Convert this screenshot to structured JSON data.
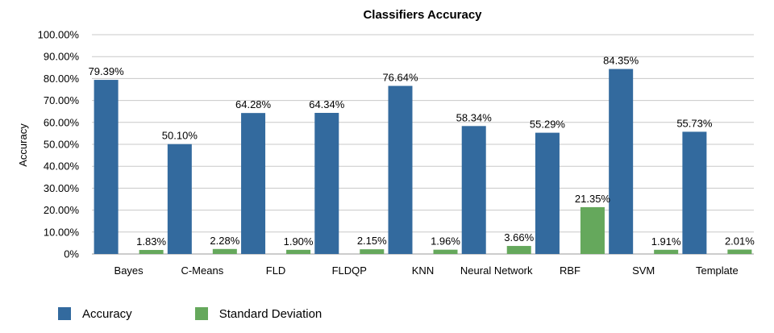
{
  "chart_data": {
    "type": "bar",
    "title": "Classifiers Accuracy",
    "xlabel": "",
    "ylabel": "Accuracy",
    "ylim": [
      0,
      100
    ],
    "yticks": [
      "0%",
      "10.00%",
      "20.00%",
      "30.00%",
      "40.00%",
      "50.00%",
      "60.00%",
      "70.00%",
      "80.00%",
      "90.00%",
      "100.00%"
    ],
    "categories": [
      "Bayes",
      "C-Means",
      "FLD",
      "FLDQP",
      "KNN",
      "Neural Network",
      "RBF",
      "SVM",
      "Template"
    ],
    "series": [
      {
        "name": "Accuracy",
        "color": "#336a9e",
        "values": [
          79.39,
          50.1,
          64.28,
          64.34,
          76.64,
          58.34,
          55.29,
          84.35,
          55.73
        ],
        "labels": [
          "79.39%",
          "50.10%",
          "64.28%",
          "64.34%",
          "76.64%",
          "58.34%",
          "55.29%",
          "84.35%",
          "55.73%"
        ]
      },
      {
        "name": "Standard Deviation",
        "color": "#65a85c",
        "values": [
          1.83,
          2.28,
          1.9,
          2.15,
          1.96,
          3.66,
          21.35,
          1.91,
          2.01
        ],
        "labels": [
          "1.83%",
          "2.28%",
          "1.90%",
          "2.15%",
          "1.96%",
          "3.66%",
          "21.35%",
          "1.91%",
          "2.01%"
        ]
      }
    ],
    "grid": true,
    "legend_position": "bottom-left"
  }
}
